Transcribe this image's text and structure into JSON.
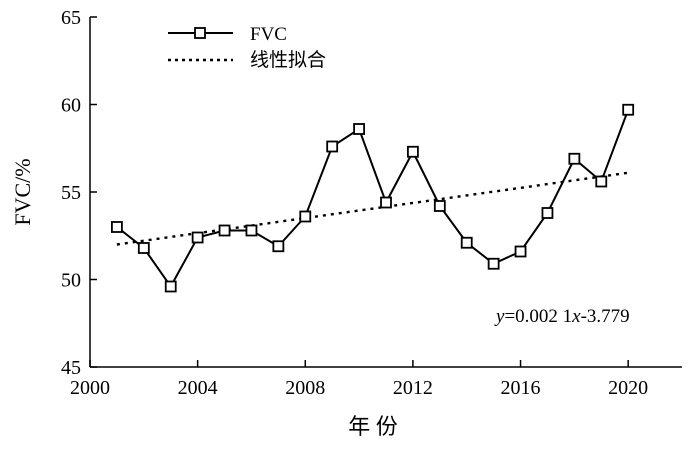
{
  "chart_data": {
    "type": "line",
    "xlabel": "年 份",
    "ylabel": "FVC/%",
    "xlim": [
      2000,
      2022
    ],
    "ylim": [
      45,
      65
    ],
    "xticks": [
      2000,
      2004,
      2008,
      2012,
      2016,
      2020
    ],
    "yticks": [
      45,
      50,
      55,
      60,
      65
    ],
    "grid": false,
    "legend_position": "top-left",
    "series": [
      {
        "name": "FVC",
        "style": "solid line with hollow square markers",
        "x": [
          2001,
          2002,
          2003,
          2004,
          2005,
          2006,
          2007,
          2008,
          2009,
          2010,
          2011,
          2012,
          2013,
          2014,
          2015,
          2016,
          2017,
          2018,
          2019,
          2020
        ],
        "y": [
          53.0,
          51.8,
          49.6,
          52.4,
          52.8,
          52.8,
          51.9,
          53.6,
          57.6,
          58.6,
          54.4,
          57.3,
          54.2,
          52.1,
          50.9,
          51.6,
          53.8,
          56.9,
          55.6,
          59.7
        ]
      },
      {
        "name": "线性拟合",
        "style": "dotted line",
        "x": [
          2001,
          2020
        ],
        "y": [
          52.0,
          56.1
        ]
      }
    ],
    "annotation": {
      "y_var": "y",
      "eq": "=0.002 1",
      "x_var": "x",
      "rest": "-3.779"
    },
    "colors": {
      "line": "#000000",
      "marker_fill": "#ffffff"
    }
  }
}
